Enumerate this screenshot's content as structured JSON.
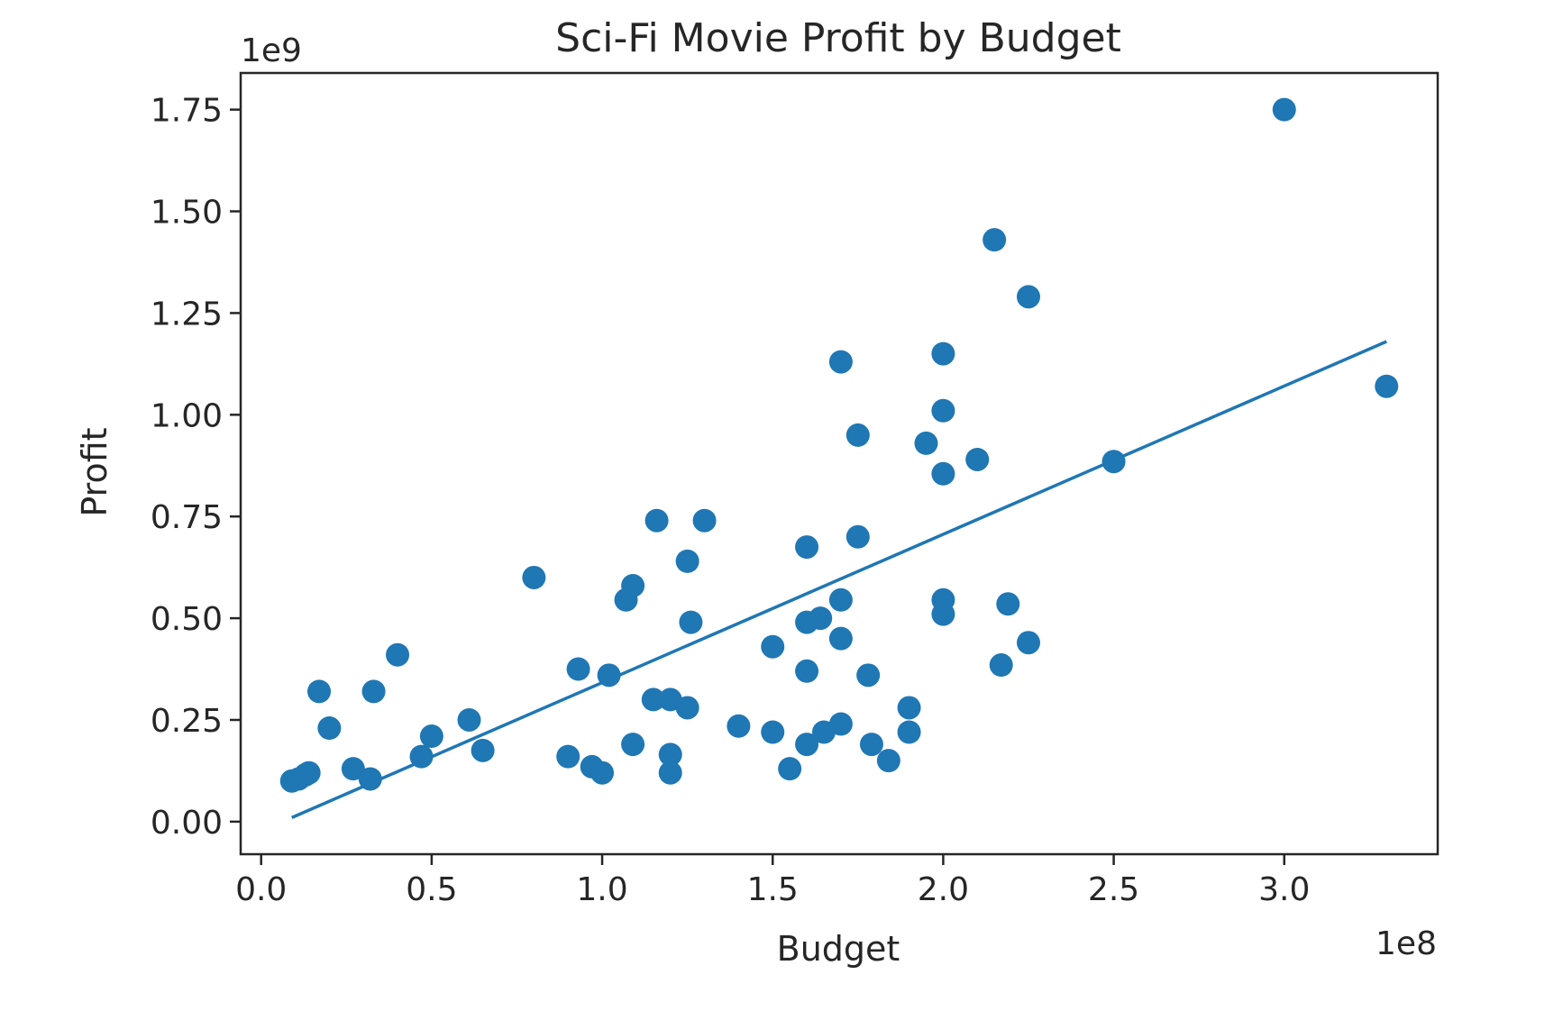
{
  "chart_data": {
    "type": "scatter",
    "title": "Sci-Fi Movie Profit by Budget",
    "xlabel": "Budget",
    "ylabel": "Profit",
    "x_offset_label": "1e8",
    "y_offset_label": "1e9",
    "xlim": [
      -0.06,
      3.45
    ],
    "ylim": [
      -0.08,
      1.84
    ],
    "x_ticks": [
      {
        "value": 0.0,
        "label": "0.0"
      },
      {
        "value": 0.5,
        "label": "0.5"
      },
      {
        "value": 1.0,
        "label": "1.0"
      },
      {
        "value": 1.5,
        "label": "1.5"
      },
      {
        "value": 2.0,
        "label": "2.0"
      },
      {
        "value": 2.5,
        "label": "2.5"
      },
      {
        "value": 3.0,
        "label": "3.0"
      }
    ],
    "y_ticks": [
      {
        "value": 0.0,
        "label": "0.00"
      },
      {
        "value": 0.25,
        "label": "0.25"
      },
      {
        "value": 0.5,
        "label": "0.50"
      },
      {
        "value": 0.75,
        "label": "0.75"
      },
      {
        "value": 1.0,
        "label": "1.00"
      },
      {
        "value": 1.25,
        "label": "1.25"
      },
      {
        "value": 1.5,
        "label": "1.50"
      },
      {
        "value": 1.75,
        "label": "1.75"
      }
    ],
    "grid": false,
    "color": "#1f77b4",
    "points": [
      [
        0.09,
        0.1
      ],
      [
        0.11,
        0.105
      ],
      [
        0.13,
        0.115
      ],
      [
        0.14,
        0.12
      ],
      [
        0.17,
        0.32
      ],
      [
        0.2,
        0.23
      ],
      [
        0.27,
        0.13
      ],
      [
        0.32,
        0.105
      ],
      [
        0.33,
        0.32
      ],
      [
        0.4,
        0.41
      ],
      [
        0.47,
        0.16
      ],
      [
        0.5,
        0.21
      ],
      [
        0.61,
        0.25
      ],
      [
        0.65,
        0.175
      ],
      [
        0.8,
        0.6
      ],
      [
        0.9,
        0.16
      ],
      [
        0.93,
        0.375
      ],
      [
        0.97,
        0.135
      ],
      [
        1.0,
        0.12
      ],
      [
        1.02,
        0.36
      ],
      [
        1.07,
        0.545
      ],
      [
        1.09,
        0.58
      ],
      [
        1.09,
        0.19
      ],
      [
        1.15,
        0.3
      ],
      [
        1.16,
        0.74
      ],
      [
        1.2,
        0.3
      ],
      [
        1.2,
        0.165
      ],
      [
        1.2,
        0.12
      ],
      [
        1.25,
        0.28
      ],
      [
        1.25,
        0.64
      ],
      [
        1.26,
        0.49
      ],
      [
        1.3,
        0.74
      ],
      [
        1.4,
        0.235
      ],
      [
        1.5,
        0.43
      ],
      [
        1.5,
        0.22
      ],
      [
        1.55,
        0.13
      ],
      [
        1.6,
        0.675
      ],
      [
        1.6,
        0.49
      ],
      [
        1.6,
        0.37
      ],
      [
        1.6,
        0.19
      ],
      [
        1.64,
        0.5
      ],
      [
        1.65,
        0.22
      ],
      [
        1.7,
        1.13
      ],
      [
        1.7,
        0.545
      ],
      [
        1.7,
        0.45
      ],
      [
        1.7,
        0.24
      ],
      [
        1.75,
        0.95
      ],
      [
        1.75,
        0.7
      ],
      [
        1.78,
        0.36
      ],
      [
        1.79,
        0.19
      ],
      [
        1.84,
        0.15
      ],
      [
        1.9,
        0.28
      ],
      [
        1.9,
        0.22
      ],
      [
        1.95,
        0.93
      ],
      [
        2.0,
        1.15
      ],
      [
        2.0,
        1.01
      ],
      [
        2.0,
        0.855
      ],
      [
        2.0,
        0.545
      ],
      [
        2.0,
        0.51
      ],
      [
        2.1,
        0.89
      ],
      [
        2.15,
        1.43
      ],
      [
        2.17,
        0.385
      ],
      [
        2.19,
        0.535
      ],
      [
        2.25,
        1.29
      ],
      [
        2.25,
        0.44
      ],
      [
        2.5,
        0.885
      ],
      [
        3.0,
        1.75
      ],
      [
        3.3,
        1.07
      ]
    ],
    "trendline": {
      "x": [
        0.09,
        3.3
      ],
      "y": [
        0.01,
        1.18
      ]
    }
  }
}
